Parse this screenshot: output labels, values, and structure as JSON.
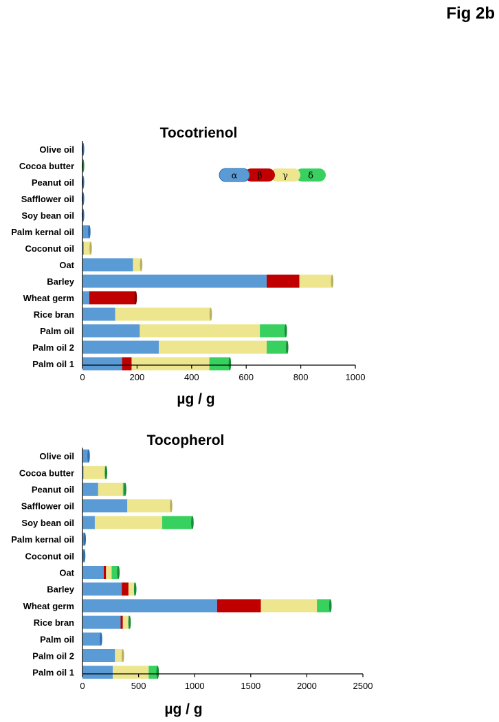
{
  "figure_label": "Fig 2b",
  "colors": {
    "alpha": "#5b9bd5",
    "beta": "#c00000",
    "gamma": "#ede68f",
    "delta": "#38d160"
  },
  "legend": [
    "α",
    "β",
    "γ",
    "δ"
  ],
  "chart_data": [
    {
      "type": "bar",
      "orientation": "horizontal",
      "stacked": true,
      "title": "Tocotrienol",
      "xlabel": "µg / g",
      "xlim": [
        0,
        1000
      ],
      "xticks": [
        "0",
        "200",
        "400",
        "600",
        "800",
        "1000"
      ],
      "categories": [
        "Olive oil",
        "Cocoa butter",
        "Peanut oil",
        "Safflower oil",
        "Soy bean oil",
        "Palm kernal oil",
        "Coconut oil",
        "Oat",
        "Barley",
        "Wheat germ",
        "Rice bran",
        "Palm oil",
        "Palm oil 2",
        "Palm oil 1"
      ],
      "series": [
        {
          "name": "α",
          "values": [
            2,
            1,
            2,
            2,
            2,
            25,
            5,
            185,
            675,
            25,
            120,
            210,
            280,
            145
          ]
        },
        {
          "name": "β",
          "values": [
            0,
            0,
            0,
            0,
            0,
            0,
            0,
            0,
            120,
            170,
            0,
            0,
            0,
            35
          ]
        },
        {
          "name": "γ",
          "values": [
            0,
            0,
            0,
            0,
            0,
            0,
            25,
            30,
            120,
            0,
            350,
            440,
            395,
            285
          ]
        },
        {
          "name": "δ",
          "values": [
            0,
            1,
            0,
            0,
            0,
            0,
            0,
            0,
            0,
            0,
            0,
            95,
            75,
            75
          ]
        }
      ]
    },
    {
      "type": "bar",
      "orientation": "horizontal",
      "stacked": true,
      "title": "Tocopherol",
      "xlabel": "µg / g",
      "xlim": [
        0,
        2500
      ],
      "xticks": [
        "0",
        "500",
        "1000",
        "1500",
        "2000",
        "2500"
      ],
      "categories": [
        "Olive oil",
        "Cocoa butter",
        "Peanut oil",
        "Safflower oil",
        "Soy bean oil",
        "Palm kernal oil",
        "Coconut oil",
        "Oat",
        "Barley",
        "Wheat germ",
        "Rice bran",
        "Palm oil",
        "Palm oil 2",
        "Palm oil 1"
      ],
      "series": [
        {
          "name": "α",
          "values": [
            55,
            10,
            140,
            400,
            110,
            20,
            15,
            190,
            350,
            1200,
            340,
            165,
            290,
            270
          ]
        },
        {
          "name": "β",
          "values": [
            0,
            0,
            0,
            0,
            0,
            0,
            0,
            20,
            60,
            390,
            20,
            0,
            0,
            0
          ]
        },
        {
          "name": "γ",
          "values": [
            0,
            190,
            220,
            390,
            600,
            0,
            0,
            50,
            50,
            500,
            50,
            0,
            70,
            320
          ]
        },
        {
          "name": "δ",
          "values": [
            0,
            10,
            20,
            0,
            270,
            0,
            0,
            60,
            10,
            120,
            10,
            0,
            0,
            80
          ]
        }
      ]
    }
  ]
}
